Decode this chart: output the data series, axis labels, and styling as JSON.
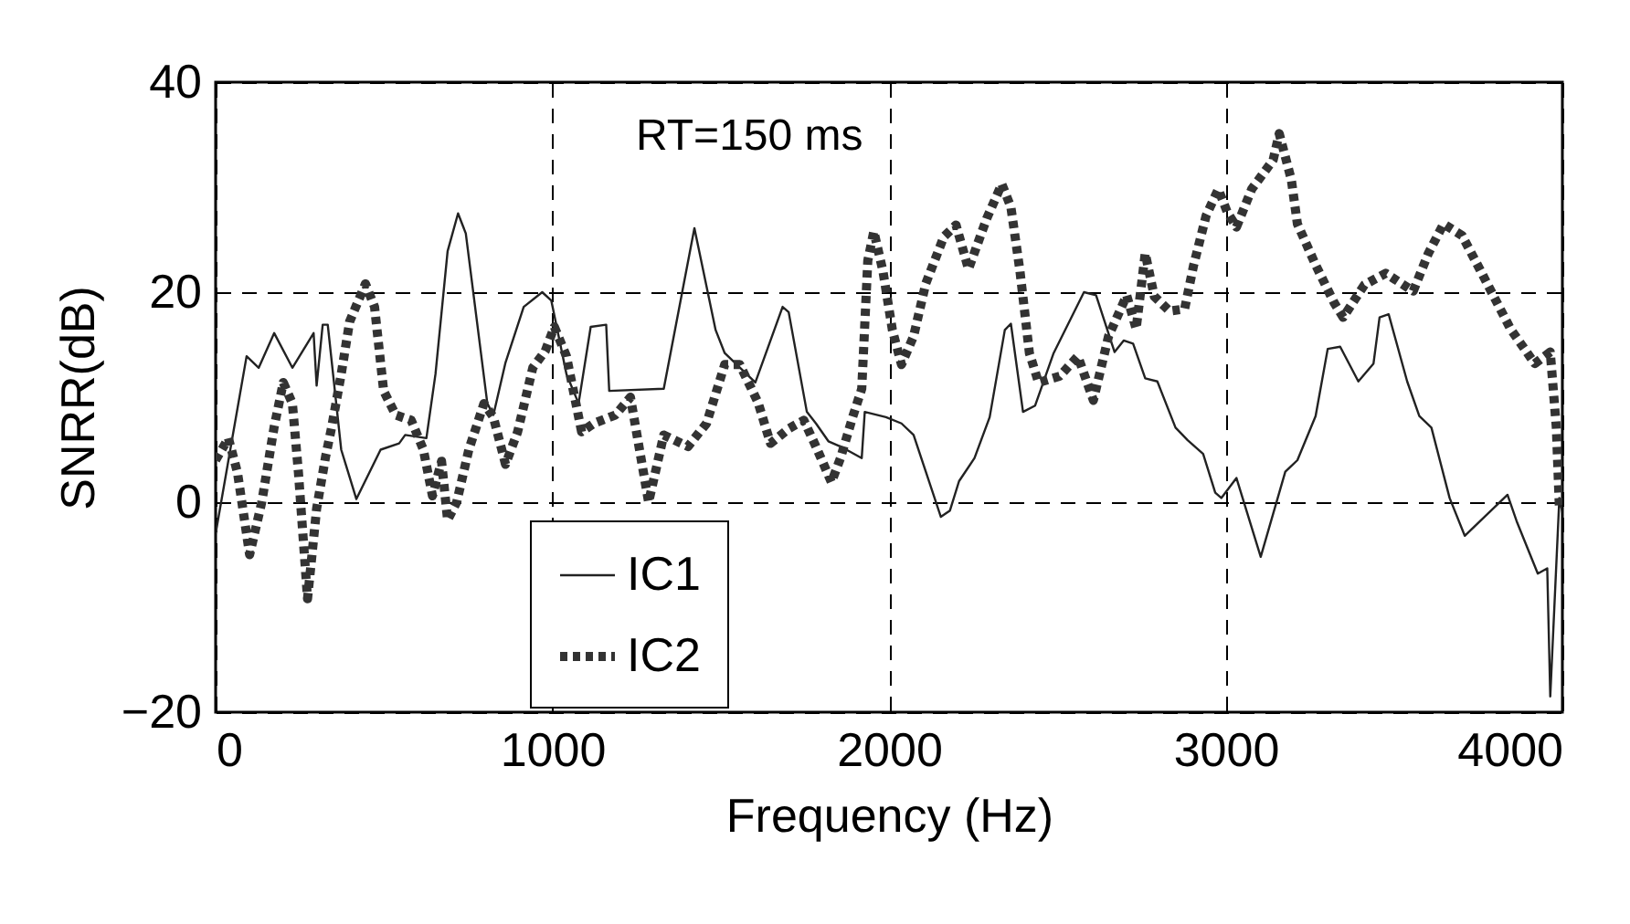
{
  "chart_data": {
    "type": "line",
    "xlabel": "Frequency (Hz)",
    "ylabel": "SNRR(dB)",
    "xlim": [
      0,
      4000
    ],
    "ylim": [
      -20,
      40
    ],
    "xticks": [
      0,
      1000,
      2000,
      3000,
      4000
    ],
    "yticks": [
      -20,
      0,
      20,
      40
    ],
    "grid": true,
    "legend": "bottom",
    "annotations": [
      "RT=150 ms"
    ],
    "series": [
      {
        "name": "IC1",
        "color": "#222222",
        "line_style": "solid",
        "x": [
          0,
          92,
          128,
          174,
          228,
          291,
          300,
          318,
          333,
          373,
          418,
          490,
          545,
          563,
          626,
          653,
          689,
          720,
          743,
          807,
          825,
          861,
          915,
          970,
          997,
          1042,
          1078,
          1114,
          1160,
          1169,
          1331,
          1422,
          1485,
          1512,
          1603,
          1684,
          1702,
          1756,
          1783,
          1820,
          1856,
          1919,
          1928,
          1991,
          2037,
          2073,
          2154,
          2181,
          2208,
          2254,
          2299,
          2344,
          2362,
          2398,
          2434,
          2489,
          2579,
          2615,
          2670,
          2697,
          2725,
          2761,
          2797,
          2851,
          2887,
          2933,
          2969,
          2987,
          3032,
          3104,
          3177,
          3213,
          3267,
          3303,
          3340,
          3394,
          3439,
          3457,
          3484,
          3539,
          3575,
          3611,
          3665,
          3710,
          3837,
          3864,
          3927,
          3955,
          3964,
          3991,
          4000
        ],
        "values": [
          -3,
          13.9,
          12.8,
          16.1,
          12.8,
          16.1,
          11.1,
          16.9,
          16.9,
          5,
          0.3,
          5,
          5.6,
          6.4,
          6.1,
          12.2,
          23.9,
          27.5,
          25.6,
          9.4,
          8.3,
          13.3,
          18.6,
          20,
          19.2,
          12.2,
          9.4,
          16.7,
          16.9,
          10.6,
          10.8,
          26.1,
          16.4,
          14.2,
          11.4,
          18.6,
          18.1,
          8.6,
          7.5,
          5.8,
          5.3,
          4.2,
          8.6,
          8.1,
          7.5,
          6.4,
          -1.4,
          -0.8,
          2,
          4.2,
          8.1,
          16.4,
          17,
          8.6,
          9.2,
          14.2,
          20,
          19.7,
          14.3,
          15.4,
          15.1,
          11.8,
          11.5,
          7.1,
          5.9,
          4.6,
          0.9,
          0.4,
          2.3,
          -5.2,
          2.9,
          4,
          8.2,
          14.6,
          14.8,
          11.5,
          13.2,
          17.6,
          17.9,
          11.5,
          8.2,
          7.1,
          0.4,
          -3.2,
          0.7,
          -1.8,
          -6.8,
          -6.3,
          -18.5,
          0.4,
          -1
        ]
      },
      {
        "name": "IC2",
        "color": "#333333",
        "line_style": "dotted",
        "x": [
          0,
          38,
          65,
          101,
          137,
          174,
          201,
          228,
          246,
          273,
          300,
          327,
          345,
          373,
          398,
          445,
          472,
          499,
          535,
          581,
          617,
          644,
          671,
          689,
          716,
          752,
          797,
          825,
          861,
          897,
          942,
          979,
          1006,
          1042,
          1087,
          1123,
          1187,
          1232,
          1259,
          1286,
          1331,
          1403,
          1458,
          1512,
          1557,
          1611,
          1648,
          1702,
          1747,
          1783,
          1829,
          1856,
          1892,
          1919,
          1937,
          1955,
          1982,
          2010,
          2037,
          2073,
          2109,
          2163,
          2199,
          2236,
          2290,
          2335,
          2362,
          2389,
          2417,
          2444,
          2507,
          2561,
          2607,
          2652,
          2706,
          2734,
          2761,
          2788,
          2833,
          2878,
          2905,
          2942,
          2978,
          3005,
          3032,
          3077,
          3141,
          3159,
          3195,
          3213,
          3267,
          3322,
          3349,
          3412,
          3475,
          3557,
          3602,
          3647,
          3702,
          3756,
          3846,
          3918,
          3964,
          3982,
          3991
        ],
        "values": [
          4,
          6.1,
          2.8,
          -5,
          0,
          7.2,
          11.4,
          9.4,
          2.8,
          -9.2,
          -0.6,
          4.4,
          7.2,
          12.2,
          17.2,
          20.8,
          18.6,
          10.6,
          8.3,
          7.8,
          5,
          0.6,
          3.9,
          -1.7,
          0,
          5,
          9.4,
          8.1,
          3.6,
          6.7,
          12.8,
          14.4,
          16.7,
          13.9,
          6.7,
          7.5,
          8.3,
          10,
          5,
          0,
          6.4,
          5.3,
          7.5,
          13.1,
          13.1,
          9.5,
          5.6,
          7,
          7.8,
          5.3,
          1.9,
          4.2,
          8.1,
          10.8,
          23,
          25.8,
          22,
          16.4,
          13.1,
          15.8,
          20.8,
          25.3,
          26.4,
          22.2,
          27,
          30.3,
          28.1,
          22,
          14.2,
          11.4,
          12,
          13.9,
          9.7,
          15.8,
          19.7,
          16.5,
          23.7,
          19.6,
          18.2,
          18.4,
          22.6,
          27.3,
          29.8,
          27.6,
          26.2,
          29.8,
          32.6,
          35.1,
          30.7,
          26.5,
          22.6,
          19,
          17.6,
          20.7,
          21.8,
          20.1,
          23.7,
          26.5,
          25.4,
          22.1,
          16.5,
          13.2,
          14.3,
          7.1,
          -0.4
        ]
      }
    ]
  }
}
